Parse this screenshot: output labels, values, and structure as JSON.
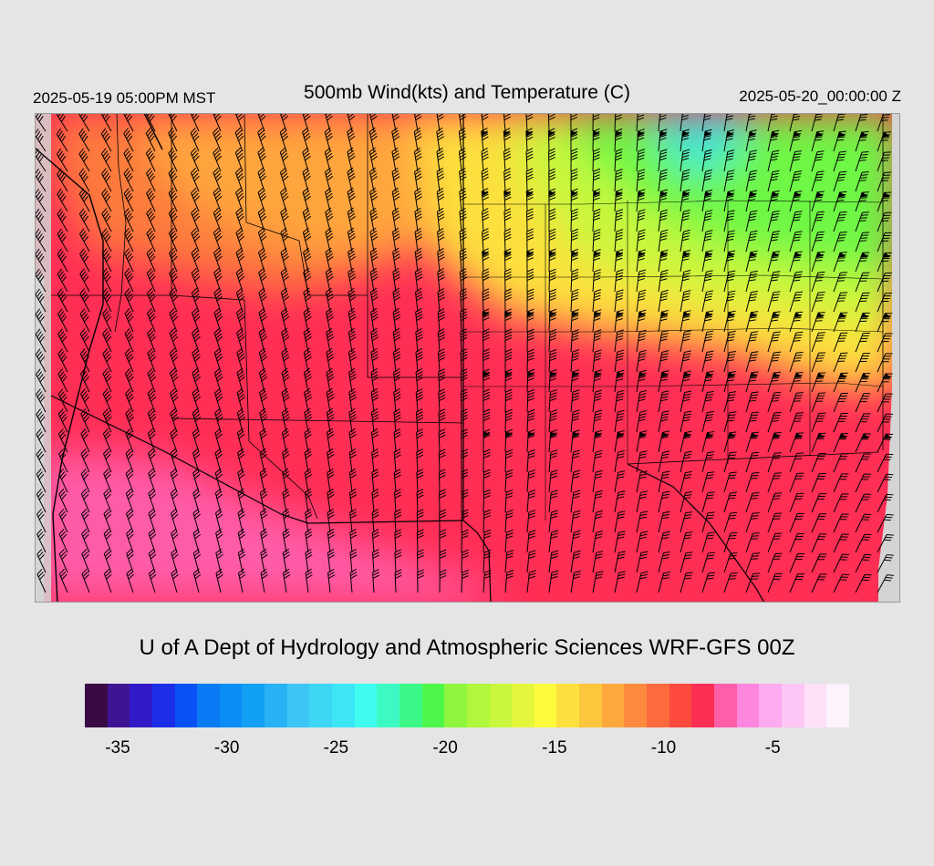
{
  "header": {
    "valid_local": "2025-05-19 05:00PM MST",
    "title": "500mb Wind(kts) and Temperature (C)",
    "valid_utc": "2025-05-20_00:00:00 Z"
  },
  "footer": {
    "credit": "U of A Dept of Hydrology and Atmospheric Sciences WRF-GFS 00Z"
  },
  "colorbar": {
    "colors": [
      "#3a0a45",
      "#3f1494",
      "#3219c7",
      "#1c2ee8",
      "#0a52f5",
      "#0a7af5",
      "#0a8ef5",
      "#12a0f5",
      "#26b2f5",
      "#3dc6f5",
      "#3dd6f5",
      "#3de6f5",
      "#3ffcf0",
      "#3dfac4",
      "#3af787",
      "#4cf74a",
      "#8ef73d",
      "#b0f73d",
      "#c9f73d",
      "#e5f73d",
      "#fdfa3d",
      "#fde03d",
      "#fdc63d",
      "#fda83d",
      "#fd8a3d",
      "#fd6a3d",
      "#fd4a3d",
      "#fd2f52",
      "#fe5fa8",
      "#fe86de",
      "#feaaf0",
      "#fec6f5",
      "#fee0f9",
      "#fef2fd"
    ],
    "tick_labels": [
      "-35",
      "-30",
      "-25",
      "-20",
      "-15",
      "-10",
      "-5"
    ],
    "tick_values": [
      -35,
      -30,
      -25,
      -20,
      -15,
      -10,
      -5
    ],
    "range": [
      -36,
      -1
    ]
  },
  "map": {
    "legend_colors": {
      "pink_region": "#ff5ca8",
      "red_region": "#ff2e55",
      "orange_region": "#ffa53d",
      "yellow_region": "#f5f53d",
      "green_region": "#7af53d",
      "cyan_region": "#3de8e0",
      "missing": "#d4d4d4"
    }
  }
}
